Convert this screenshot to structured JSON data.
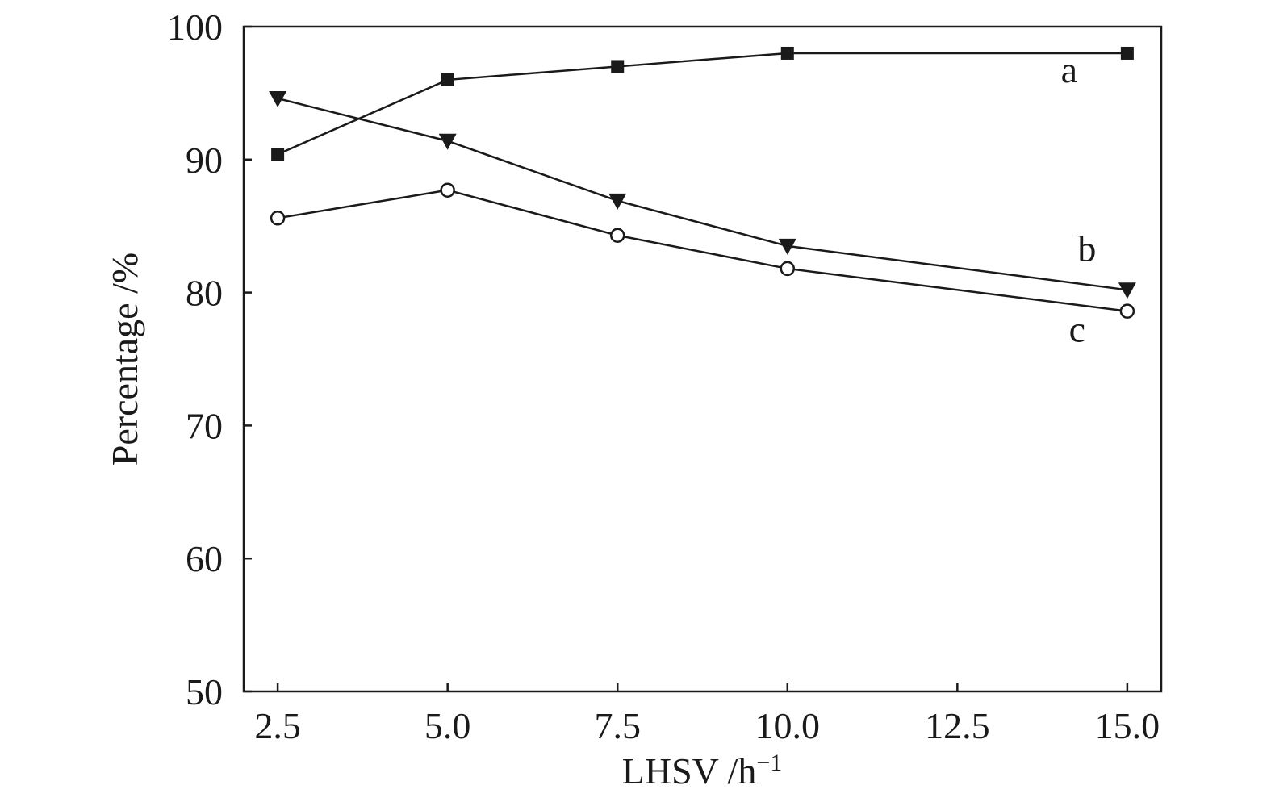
{
  "chart_data": {
    "type": "line",
    "title": "",
    "xlabel": "LHSV /h",
    "xlabel_superscript": "−1",
    "ylabel": "Percentage /%",
    "xlim": [
      2.0,
      15.5
    ],
    "ylim": [
      50,
      100
    ],
    "xticks": [
      2.5,
      5.0,
      7.5,
      10.0,
      12.5,
      15.0
    ],
    "xtick_labels": [
      "2.5",
      "5.0",
      "7.5",
      "10.0",
      "12.5",
      "15.0"
    ],
    "yticks": [
      50,
      60,
      70,
      80,
      90,
      100
    ],
    "ytick_labels": [
      "50",
      "60",
      "70",
      "80",
      "90",
      "100"
    ],
    "grid": false,
    "x": [
      2.5,
      5.0,
      7.5,
      10.0,
      15.0
    ],
    "series": [
      {
        "name": "a",
        "marker": "filled-square",
        "values": [
          90.4,
          96.0,
          97.0,
          98.0,
          98.0
        ]
      },
      {
        "name": "b",
        "marker": "filled-triangle-down",
        "values": [
          94.6,
          91.4,
          86.9,
          83.5,
          80.2
        ]
      },
      {
        "name": "c",
        "marker": "open-circle",
        "values": [
          85.6,
          87.7,
          84.3,
          81.8,
          78.6
        ]
      }
    ],
    "colors": {
      "line": "#1a1a1a",
      "marker_fill_open": "#ffffff"
    }
  }
}
